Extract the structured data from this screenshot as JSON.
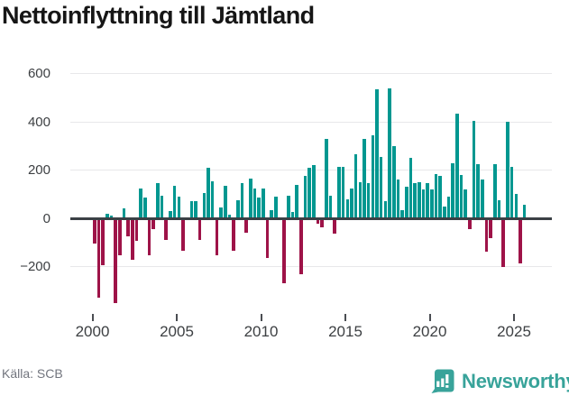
{
  "title": "Nettoinflyttning till Jämtland",
  "source": "Källa: SCB",
  "logo": {
    "text": "Newsworthy"
  },
  "colors": {
    "positive": "#009790",
    "negative": "#9e1348",
    "axis": "#3b4045",
    "grid": "#e8e8ea",
    "logo_teal": "#38a39a",
    "text": "#3d4043"
  },
  "chart_data": {
    "type": "bar",
    "title": "Nettoinflyttning till Jämtland",
    "frequency": "quarterly",
    "x_start": {
      "year": 2000,
      "quarter": 1
    },
    "x_end": {
      "year": 2025,
      "quarter": 3
    },
    "values": [
      -100,
      -325,
      -190,
      20,
      10,
      -350,
      -150,
      40,
      -70,
      -170,
      -90,
      125,
      85,
      -150,
      -40,
      145,
      95,
      -85,
      30,
      135,
      90,
      -130,
      5,
      70,
      70,
      -85,
      105,
      210,
      155,
      -150,
      45,
      135,
      15,
      -130,
      75,
      145,
      -55,
      165,
      125,
      85,
      125,
      -160,
      35,
      90,
      5,
      -265,
      95,
      25,
      140,
      -230,
      175,
      210,
      220,
      -20,
      -35,
      330,
      95,
      -60,
      215,
      215,
      80,
      125,
      265,
      150,
      330,
      145,
      345,
      535,
      255,
      70,
      540,
      300,
      160,
      35,
      130,
      250,
      145,
      150,
      120,
      145,
      120,
      185,
      175,
      50,
      90,
      230,
      435,
      180,
      120,
      -40,
      405,
      225,
      160,
      -135,
      -80,
      225,
      75,
      -200,
      400,
      215,
      100,
      -185,
      55
    ],
    "y_ticks": [
      600,
      400,
      200,
      0,
      -200
    ],
    "y_tick_labels": [
      "600",
      "400",
      "200",
      "0",
      "−200"
    ],
    "x_tick_years": [
      2000,
      2005,
      2010,
      2015,
      2020,
      2025
    ],
    "x_tick_labels": [
      "2000",
      "2005",
      "2010",
      "2015",
      "2020",
      "2025"
    ],
    "ylim": [
      -400,
      650
    ],
    "grid": "horizontal",
    "legend": "none",
    "positive_color": "#009790",
    "negative_color": "#9e1348"
  }
}
